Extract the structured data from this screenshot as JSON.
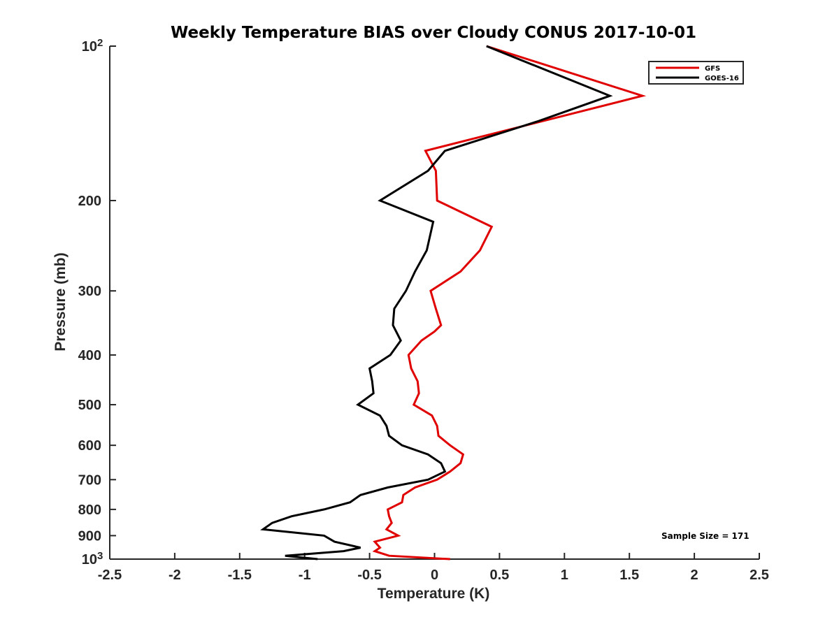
{
  "chart_data": {
    "type": "line",
    "title": "Weekly Temperature BIAS over Cloudy CONUS 2017-10-01",
    "xlabel": "Temperature (K)",
    "ylabel": "Pressure (mb)",
    "xlim": [
      -2.5,
      2.5
    ],
    "ylim": [
      100,
      1000
    ],
    "y_scale": "log",
    "y_reversed": true,
    "grid": false,
    "legend_position": "top-right",
    "x_ticks": [
      "-2.5",
      "-2",
      "-1.5",
      "-1",
      "-0.5",
      "0",
      "0.5",
      "1",
      "1.5",
      "2",
      "2.5"
    ],
    "y_ticks": [
      {
        "value": 100,
        "label": "10",
        "sup": "2"
      },
      {
        "value": 200,
        "label": "200"
      },
      {
        "value": 300,
        "label": "300"
      },
      {
        "value": 400,
        "label": "400"
      },
      {
        "value": 500,
        "label": "500"
      },
      {
        "value": 600,
        "label": "600"
      },
      {
        "value": 700,
        "label": "700"
      },
      {
        "value": 800,
        "label": "800"
      },
      {
        "value": 900,
        "label": "900"
      },
      {
        "value": 1000,
        "label": "10",
        "sup": "3"
      }
    ],
    "series": [
      {
        "name": "GFS",
        "color": "#e00000",
        "points": [
          [
            0.4,
            100
          ],
          [
            1.6,
            125
          ],
          [
            -0.07,
            160
          ],
          [
            0.01,
            175
          ],
          [
            0.02,
            200
          ],
          [
            0.44,
            225
          ],
          [
            0.35,
            250
          ],
          [
            0.2,
            275
          ],
          [
            -0.03,
            300
          ],
          [
            0.01,
            325
          ],
          [
            0.05,
            350
          ],
          [
            0.0,
            360
          ],
          [
            -0.1,
            375
          ],
          [
            -0.2,
            400
          ],
          [
            -0.18,
            425
          ],
          [
            -0.13,
            450
          ],
          [
            -0.12,
            475
          ],
          [
            -0.16,
            500
          ],
          [
            -0.02,
            525
          ],
          [
            0.02,
            550
          ],
          [
            0.03,
            575
          ],
          [
            0.12,
            600
          ],
          [
            0.22,
            625
          ],
          [
            0.2,
            650
          ],
          [
            0.12,
            675
          ],
          [
            0.02,
            700
          ],
          [
            -0.15,
            725
          ],
          [
            -0.24,
            750
          ],
          [
            -0.25,
            775
          ],
          [
            -0.36,
            800
          ],
          [
            -0.35,
            825
          ],
          [
            -0.33,
            850
          ],
          [
            -0.37,
            875
          ],
          [
            -0.28,
            900
          ],
          [
            -0.46,
            925
          ],
          [
            -0.42,
            950
          ],
          [
            -0.46,
            965
          ],
          [
            -0.35,
            985
          ],
          [
            0.12,
            1000
          ]
        ]
      },
      {
        "name": "GOES-16",
        "color": "#000000",
        "points": [
          [
            0.4,
            100
          ],
          [
            1.35,
            125
          ],
          [
            0.8,
            140
          ],
          [
            0.08,
            160
          ],
          [
            -0.05,
            175
          ],
          [
            -0.42,
            200
          ],
          [
            -0.01,
            220
          ],
          [
            -0.06,
            250
          ],
          [
            -0.15,
            275
          ],
          [
            -0.22,
            300
          ],
          [
            -0.31,
            325
          ],
          [
            -0.32,
            350
          ],
          [
            -0.26,
            375
          ],
          [
            -0.34,
            400
          ],
          [
            -0.5,
            425
          ],
          [
            -0.48,
            450
          ],
          [
            -0.47,
            475
          ],
          [
            -0.59,
            500
          ],
          [
            -0.42,
            525
          ],
          [
            -0.37,
            550
          ],
          [
            -0.35,
            575
          ],
          [
            -0.25,
            600
          ],
          [
            -0.05,
            625
          ],
          [
            0.05,
            650
          ],
          [
            0.08,
            675
          ],
          [
            -0.05,
            700
          ],
          [
            -0.36,
            725
          ],
          [
            -0.57,
            750
          ],
          [
            -0.65,
            775
          ],
          [
            -0.85,
            800
          ],
          [
            -1.1,
            825
          ],
          [
            -1.25,
            850
          ],
          [
            -1.32,
            875
          ],
          [
            -0.85,
            900
          ],
          [
            -0.77,
            925
          ],
          [
            -0.57,
            950
          ],
          [
            -0.7,
            965
          ],
          [
            -1.15,
            985
          ],
          [
            -0.9,
            1000
          ]
        ]
      }
    ],
    "annotation": "Sample Size = 171"
  }
}
